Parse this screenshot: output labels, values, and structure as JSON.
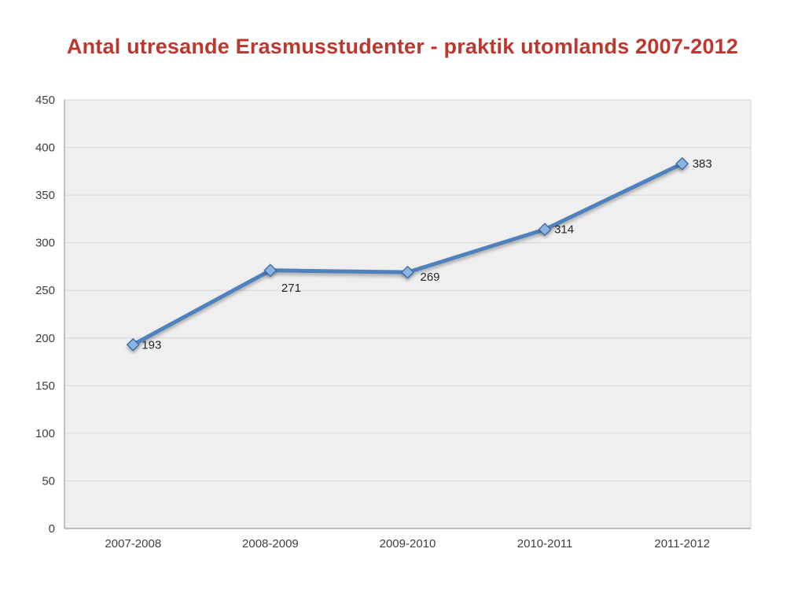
{
  "slide": {
    "title": "Antal utresande Erasmusstudenter - praktik utomlands 2007-2012"
  },
  "colors": {
    "title": "#bf362e",
    "line": "#4f81bd",
    "marker_fill": "#8db3e2",
    "marker_border": "#3a6aa0",
    "plot_bg": "#efefef",
    "grid": "#d6d6d6",
    "axis": "#9a9a9a",
    "tick_label": "#3f3f3f",
    "data_label": "#262626"
  },
  "chart_data": {
    "type": "line",
    "title": "Antal utresande Erasmusstudenter - praktik utomlands 2007-2012",
    "categories": [
      "2007-2008",
      "2008-2009",
      "2009-2010",
      "2010-2011",
      "2011-2012"
    ],
    "values": [
      193,
      271,
      269,
      314,
      383
    ],
    "data_labels": [
      "193",
      "271",
      "269",
      "314",
      "383"
    ],
    "xlabel": "",
    "ylabel": "",
    "ylim": [
      0,
      450
    ],
    "ytick_step": 50,
    "grid": true,
    "legend": "none"
  }
}
